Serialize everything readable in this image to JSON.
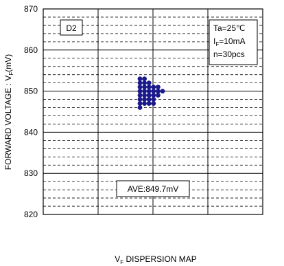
{
  "chart_data": {
    "type": "scatter",
    "title": "",
    "caption_main": "V",
    "caption_sub": "F",
    "caption_rest": " DISPERSION MAP",
    "ylabel_main": "FORWARD VOLTAGE : V",
    "ylabel_sub": "F",
    "ylabel_unit": "(mV)",
    "xlabel": "",
    "ylim": [
      820,
      870
    ],
    "yticks": [
      820,
      830,
      840,
      850,
      860,
      870
    ],
    "grid": {
      "major_step": 10,
      "minor_step": 2,
      "x_dividers": 4
    },
    "legend": "none",
    "marker_color": "#1a1a8c",
    "annotations": {
      "sample_id": "D2",
      "conditions_ta": "Ta=25℃",
      "conditions_if_main": "I",
      "conditions_if_sub": "F",
      "conditions_if_rest": "=10mA",
      "conditions_n": "n=30pcs",
      "average": "AVE:849.7mV"
    },
    "series": [
      {
        "values": [
          846,
          847,
          848,
          849,
          850,
          851,
          852,
          853,
          847,
          848,
          849,
          850,
          851,
          852,
          853,
          847,
          848,
          849,
          850,
          851,
          852,
          847,
          848,
          849,
          850,
          851,
          849,
          850,
          851,
          850
        ],
        "columns": [
          0,
          0,
          0,
          0,
          0,
          0,
          0,
          0,
          1,
          1,
          1,
          1,
          1,
          1,
          1,
          2,
          2,
          2,
          2,
          2,
          2,
          3,
          3,
          3,
          3,
          3,
          4,
          4,
          4,
          5
        ]
      }
    ]
  }
}
